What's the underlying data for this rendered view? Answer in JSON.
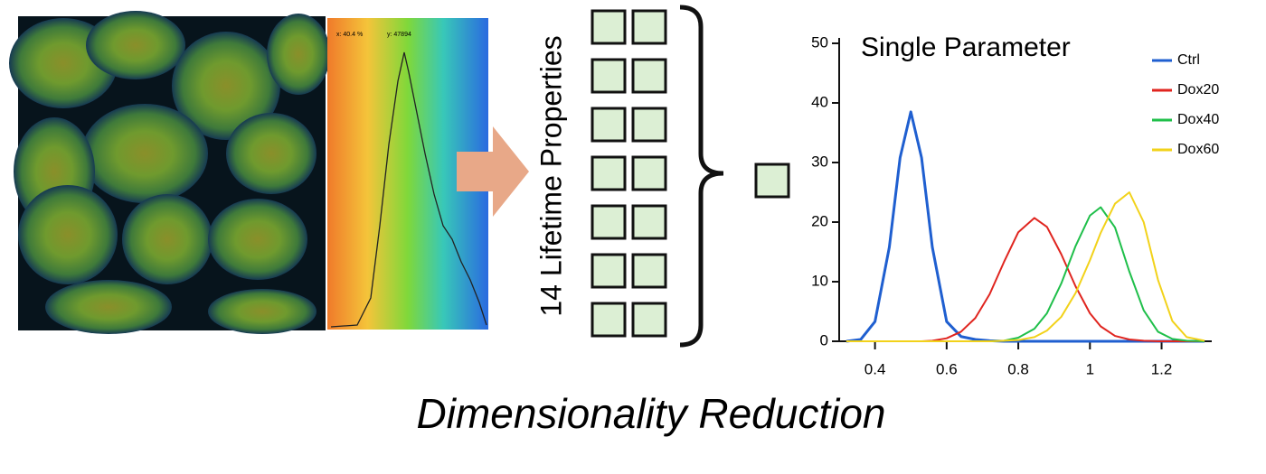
{
  "histogram_labels": [
    "x: 40.4 %",
    "y: 47894"
  ],
  "side_label": "14 Lifetime Properties",
  "caption": "Dimensionality Reduction",
  "chart_data": {
    "type": "line",
    "title": "Single Parameter",
    "x": [
      0.32,
      0.36,
      0.4,
      0.44,
      0.47,
      0.5,
      0.53,
      0.56,
      0.6,
      0.64,
      0.68,
      0.72,
      0.76,
      0.8,
      0.845,
      0.88,
      0.92,
      0.96,
      1.0,
      1.03,
      1.07,
      1.11,
      1.15,
      1.19,
      1.23,
      1.27,
      1.32
    ],
    "series": [
      {
        "name": "Ctrl",
        "color": "#1f5fd0",
        "values": [
          0,
          0.3,
          3.3,
          15.8,
          30.8,
          38.5,
          30.8,
          15.8,
          3.3,
          0.8,
          0.3,
          0.1,
          0,
          0,
          0,
          0,
          0,
          0,
          0,
          0,
          0,
          0,
          0,
          0,
          0,
          0,
          0
        ]
      },
      {
        "name": "Dox20",
        "color": "#e0251f",
        "values": [
          0,
          0,
          0,
          0,
          0,
          0,
          0,
          0.1,
          0.5,
          1.6,
          3.9,
          7.9,
          13.3,
          18.3,
          20.7,
          19.2,
          14.6,
          9.2,
          4.7,
          2.5,
          0.9,
          0.3,
          0.1,
          0,
          0,
          0,
          0
        ]
      },
      {
        "name": "Dox40",
        "color": "#1fbf4a",
        "values": [
          0,
          0,
          0,
          0,
          0,
          0,
          0,
          0,
          0,
          0,
          0,
          0,
          0.1,
          0.6,
          2.1,
          4.7,
          9.7,
          16.0,
          21.1,
          22.5,
          19.1,
          11.7,
          5.2,
          1.6,
          0.4,
          0.1,
          0
        ]
      },
      {
        "name": "Dox60",
        "color": "#f2d21a",
        "values": [
          0,
          0,
          0,
          0,
          0,
          0,
          0,
          0,
          0,
          0,
          0,
          0,
          0.1,
          0.2,
          0.7,
          1.8,
          4.1,
          8.1,
          13.6,
          18.2,
          23.1,
          25,
          20.0,
          10.3,
          3.4,
          0.7,
          0.1
        ]
      }
    ],
    "xlim": [
      0.3,
      1.34
    ],
    "xticks": [
      0.4,
      0.6,
      0.8,
      1,
      1.2
    ],
    "ylim": [
      0,
      50
    ],
    "yticks": [
      0,
      10,
      20,
      30,
      40,
      50
    ]
  }
}
